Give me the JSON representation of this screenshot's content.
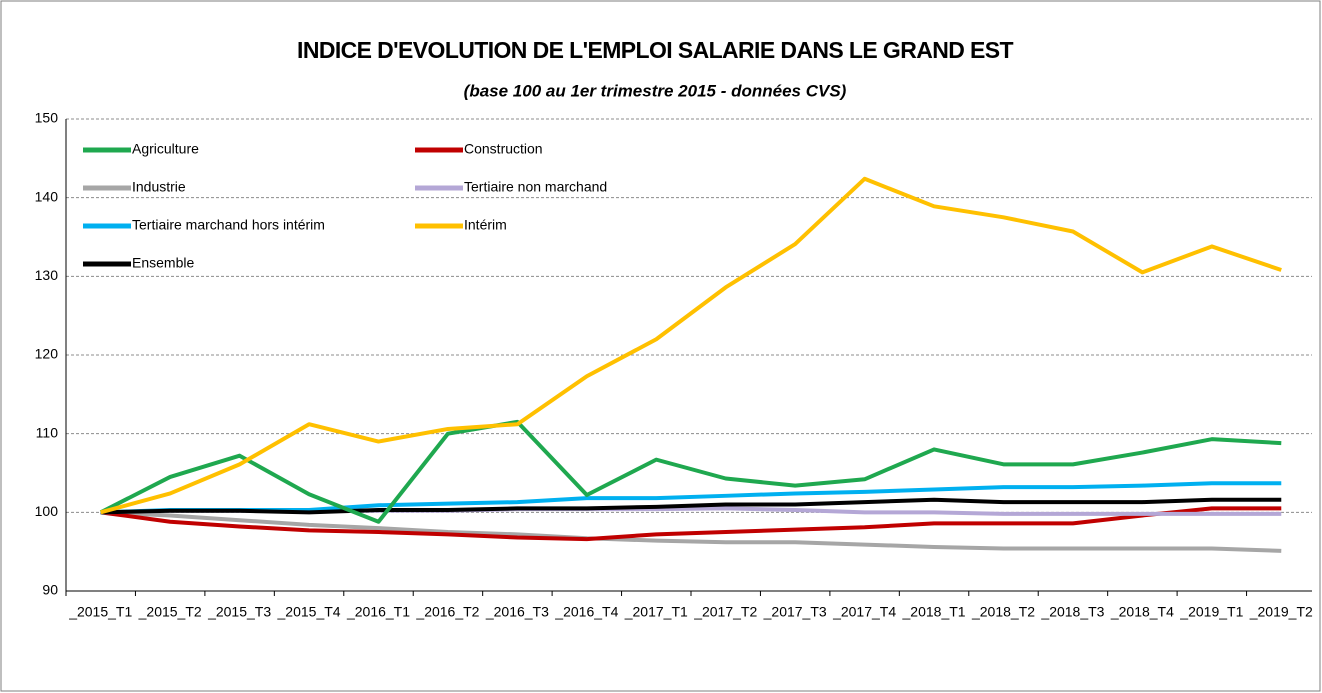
{
  "chart_data": {
    "type": "line",
    "title": "INDICE D'EVOLUTION DE L'EMPLOI SALARIE DANS LE GRAND EST",
    "subtitle": "(base 100 au 1er trimestre 2015 - données CVS)",
    "categories": [
      "_2015_T1",
      "_2015_T2",
      "_2015_T3",
      "_2015_T4",
      "_2016_T1",
      "_2016_T2",
      "_2016_T3",
      "_2016_T4",
      "_2017_T1",
      "_2017_T2",
      "_2017_T3",
      "_2017_T4",
      "_2018_T1",
      "_2018_T2",
      "_2018_T3",
      "_2018_T4",
      "_2019_T1",
      "_2019_T2"
    ],
    "series": [
      {
        "name": "Agriculture",
        "color": "#1fa84f",
        "values": [
          100,
          104.5,
          107.2,
          102.3,
          98.8,
          110,
          111.5,
          102.2,
          106.7,
          104.3,
          103.4,
          104.2,
          108,
          106.1,
          106.1,
          107.6,
          109.3,
          108.8
        ]
      },
      {
        "name": "Construction",
        "color": "#c00000",
        "values": [
          100,
          98.8,
          98.2,
          97.7,
          97.5,
          97.2,
          96.8,
          96.6,
          97.2,
          97.5,
          97.8,
          98.1,
          98.6,
          98.6,
          98.6,
          99.6,
          100.5,
          100.5
        ]
      },
      {
        "name": "Industrie",
        "color": "#a6a6a6",
        "values": [
          100,
          99.6,
          99,
          98.4,
          98,
          97.5,
          97.2,
          96.7,
          96.4,
          96.2,
          96.2,
          95.9,
          95.6,
          95.4,
          95.4,
          95.4,
          95.4,
          95.1
        ]
      },
      {
        "name": "Tertiaire non marchand",
        "color": "#b4a7d6",
        "values": [
          100,
          100.2,
          100.2,
          100.2,
          100.2,
          100.2,
          100.4,
          100.4,
          100.4,
          100.5,
          100.3,
          100,
          100,
          99.8,
          99.8,
          99.8,
          99.8,
          99.8
        ]
      },
      {
        "name": "Tertiaire marchand hors intérim",
        "color": "#00b0f0",
        "values": [
          100,
          100.3,
          100.3,
          100.3,
          100.9,
          101.1,
          101.3,
          101.8,
          101.8,
          102.1,
          102.4,
          102.6,
          102.9,
          103.2,
          103.2,
          103.4,
          103.7,
          103.7
        ]
      },
      {
        "name": "Intérim",
        "color": "#ffc000",
        "values": [
          100,
          102.4,
          106.1,
          111.2,
          109,
          110.6,
          111.2,
          117.3,
          122,
          128.6,
          134.1,
          142.4,
          138.9,
          137.5,
          135.7,
          130.5,
          133.8,
          130.8
        ]
      },
      {
        "name": "Ensemble",
        "color": "#000000",
        "values": [
          100,
          100.2,
          100.2,
          100,
          100.3,
          100.3,
          100.5,
          100.5,
          100.7,
          101,
          101,
          101.3,
          101.6,
          101.3,
          101.3,
          101.3,
          101.6,
          101.6
        ]
      }
    ],
    "ylim": [
      90,
      150
    ],
    "yticks": [
      90,
      100,
      110,
      120,
      130,
      140,
      150
    ],
    "grid": true,
    "legend": "top-left"
  }
}
